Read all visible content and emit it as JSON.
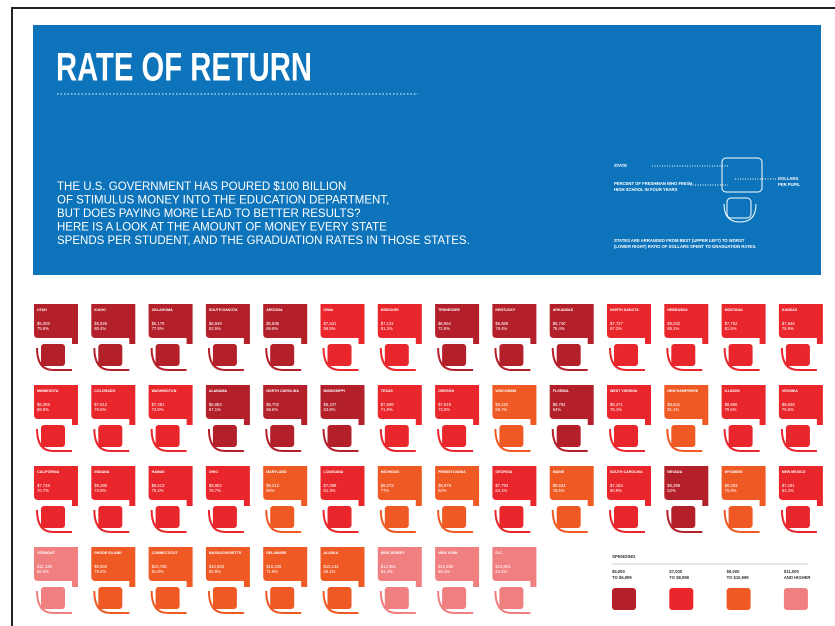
{
  "header": {
    "title": "RATE OF RETURN",
    "intro": [
      "THE U.S. GOVERNMENT HAS POURED $100 BILLION",
      "OF STIMULUS MONEY INTO THE EDUCATION DEPARTMENT,",
      "BUT DOES PAYING MORE LEAD TO BETTER RESULTS?",
      "HERE IS A LOOK AT THE AMOUNT OF MONEY EVERY STATE",
      "SPENDS PER STUDENT, AND THE GRADUATION RATES IN THOSE STATES."
    ],
    "key": {
      "state": "STATE",
      "percent": [
        "PERCENT OF FRESHMAN WHO FINISH",
        "HIGH SCHOOL IN FOUR YEARS"
      ],
      "dollars": [
        "DOLLARS",
        "PER PUPIL"
      ],
      "note": [
        "STATES ARE ARRANGED FROM BEST (UPPER LEFT) TO WORST",
        "(LOWER RIGHT) RATIO OF DOLLARS SPENT TO GRADUATION RATES."
      ]
    }
  },
  "states": [
    {
      "name": "UTAH",
      "spending": "$5,008",
      "graduation": "75.8%",
      "color": "#b3202a"
    },
    {
      "name": "IDAHO",
      "spending": "$5,826",
      "graduation": "80.4%",
      "color": "#b3202a"
    },
    {
      "name": "OKLAHOMA",
      "spending": "$6,176",
      "graduation": "77.8%",
      "color": "#b3202a"
    },
    {
      "name": "SOUTH DAKOTA",
      "spending": "$6,949",
      "graduation": "82.5%",
      "color": "#b3202a"
    },
    {
      "name": "ARIZONA",
      "spending": "$6,836",
      "graduation": "69.6%",
      "color": "#b3202a"
    },
    {
      "name": "IOWA",
      "spending": "$7,631",
      "graduation": "86.5%",
      "color": "#e9262b"
    },
    {
      "name": "MISSOURI",
      "spending": "$7,131",
      "graduation": "81.3%",
      "color": "#e9262b"
    },
    {
      "name": "TENNESSEE",
      "spending": "$6,964",
      "graduation": "72.6%",
      "color": "#b3202a"
    },
    {
      "name": "KENTUCKY",
      "spending": "$6,888",
      "graduation": "76.4%",
      "color": "#b3202a"
    },
    {
      "name": "ARKANSAS",
      "spending": "$6,740",
      "graduation": "76.4%",
      "color": "#b3202a"
    },
    {
      "name": "NORTH DAKOTA",
      "spending": "$7,727",
      "graduation": "87.2%",
      "color": "#e9262b"
    },
    {
      "name": "NEBRASKA",
      "spending": "$8,032",
      "graduation": "85.1%",
      "color": "#e9262b"
    },
    {
      "name": "MONTANA",
      "spending": "$7,762",
      "graduation": "81.5%",
      "color": "#e9262b"
    },
    {
      "name": "KANSAS",
      "spending": "$7,846",
      "graduation": "78.9%",
      "color": "#e9262b"
    },
    {
      "name": "MINNESOTA",
      "spending": "$8,359",
      "graduation": "86.5%",
      "color": "#e9262b"
    },
    {
      "name": "COLORADO",
      "spending": "$7,612",
      "graduation": "76.6%",
      "color": "#e9262b"
    },
    {
      "name": "WASHINGTON",
      "spending": "$7,391",
      "graduation": "74.8%",
      "color": "#e9262b"
    },
    {
      "name": "ALABAMA",
      "spending": "$6,883",
      "graduation": "67.1%",
      "color": "#b3202a"
    },
    {
      "name": "NORTH CAROLINA",
      "spending": "$6,702",
      "graduation": "68.6%",
      "color": "#b3202a"
    },
    {
      "name": "MISSISSIPPI",
      "spending": "$6,237",
      "graduation": "63.6%",
      "color": "#b3202a"
    },
    {
      "name": "TEXAS",
      "spending": "$7,506",
      "graduation": "71.9%",
      "color": "#e9262b"
    },
    {
      "name": "OREGON",
      "spending": "$7,619",
      "graduation": "73.0%",
      "color": "#e9262b"
    },
    {
      "name": "WISCONSIN",
      "spending": "$9,220",
      "graduation": "86.7%",
      "color": "#ef5a24"
    },
    {
      "name": "FLORIDA",
      "spending": "$6,784",
      "graduation": "64%",
      "color": "#b3202a"
    },
    {
      "name": "WEST VIRGINIA",
      "spending": "$8,471",
      "graduation": "76.1%",
      "color": "#e9262b"
    },
    {
      "name": "NEW HAMPSHIRE",
      "spending": "$9,641",
      "graduation": "81.1%",
      "color": "#ef5a24"
    },
    {
      "name": "ILLINOIS",
      "spending": "$8,956",
      "graduation": "79.5%",
      "color": "#e9262b"
    },
    {
      "name": "VIRGINIA",
      "spending": "$8,946",
      "graduation": "75.5%",
      "color": "#e9262b"
    },
    {
      "name": "CALIFORNIA",
      "spending": "$7,748",
      "graduation": "70.7%",
      "color": "#e9262b"
    },
    {
      "name": "INDIANA",
      "spending": "$8,280",
      "graduation": "73.9%",
      "color": "#e9262b"
    },
    {
      "name": "HAWAII",
      "spending": "$8,513",
      "graduation": "75.4%",
      "color": "#e9262b"
    },
    {
      "name": "OHIO",
      "spending": "$8,963",
      "graduation": "78.7%",
      "color": "#e9262b"
    },
    {
      "name": "MARYLAND",
      "spending": "$9,212",
      "graduation": "80%",
      "color": "#ef5a24"
    },
    {
      "name": "LOUISIANA",
      "spending": "$7,099",
      "graduation": "61.3%",
      "color": "#e9262b"
    },
    {
      "name": "MICHIGAN",
      "spending": "$9,073",
      "graduation": "77%",
      "color": "#ef5a24"
    },
    {
      "name": "PENNSYLVANIA",
      "spending": "$9,979",
      "graduation": "82%",
      "color": "#ef5a24"
    },
    {
      "name": "GEORGIA",
      "spending": "$7,793",
      "graduation": "64.1%",
      "color": "#e9262b"
    },
    {
      "name": "MAINE",
      "spending": "$9,534",
      "graduation": "78.5%",
      "color": "#ef5a24"
    },
    {
      "name": "SOUTH CAROLINA",
      "spending": "$7,184",
      "graduation": "60.9%",
      "color": "#e9262b"
    },
    {
      "name": "NEVADA",
      "spending": "$6,399",
      "graduation": "52%",
      "color": "#b3202a"
    },
    {
      "name": "WYOMING",
      "spending": "$9,363",
      "graduation": "75.8%",
      "color": "#ef5a24"
    },
    {
      "name": "NEW MEXICO",
      "spending": "$7,191",
      "graduation": "64.2%",
      "color": "#e9262b"
    },
    {
      "name": "VERMONT",
      "spending": "$11,128",
      "graduation": "86.6%",
      "color": "#f07f80"
    },
    {
      "name": "RHODE ISLAND",
      "spending": "$9,903",
      "graduation": "78.4%",
      "color": "#ef5a24"
    },
    {
      "name": "CONNECTICUT",
      "spending": "$10,788",
      "graduation": "81.8%",
      "color": "#ef5a24"
    },
    {
      "name": "MASSACHUSETTS",
      "spending": "$10,693",
      "graduation": "80.8%",
      "color": "#ef5a24"
    },
    {
      "name": "DELAWARE",
      "spending": "$10,228",
      "graduation": "71.9%",
      "color": "#ef5a24"
    },
    {
      "name": "ALASKA",
      "spending": "$10,134",
      "graduation": "65.1%",
      "color": "#ef5a24"
    },
    {
      "name": "NEW JERSEY",
      "spending": "$12,981",
      "graduation": "84.4%",
      "color": "#f07f80"
    },
    {
      "name": "NEW YORK",
      "spending": "$12,930",
      "graduation": "68.4%",
      "color": "#f07f80"
    },
    {
      "name": "D.C.",
      "spending": "$12,801",
      "graduation": "54.4%",
      "color": "#f07f80"
    }
  ],
  "legend": {
    "title": "SPENDING",
    "items": [
      {
        "label": [
          "$5,000",
          "TO $6,999"
        ],
        "color": "#b3202a"
      },
      {
        "label": [
          "$7,000",
          "TO $8,999"
        ],
        "color": "#e9262b"
      },
      {
        "label": [
          "$9,000",
          "TO $10,999"
        ],
        "color": "#ef5a24"
      },
      {
        "label": [
          "$11,000",
          "AND HIGHER"
        ],
        "color": "#f07f80"
      }
    ]
  }
}
